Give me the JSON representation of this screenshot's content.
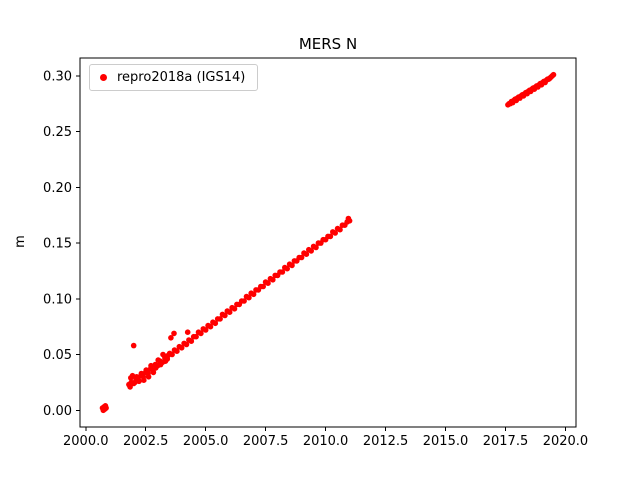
{
  "figure": {
    "title": "MERS N",
    "ylabel": "m"
  },
  "chart_data": {
    "type": "scatter",
    "title": "MERS N",
    "xlabel": "",
    "ylabel": "m",
    "xlim": [
      1999.76,
      2020.44
    ],
    "ylim": [
      -0.015,
      0.316
    ],
    "x_ticks": [
      2000.0,
      2002.5,
      2005.0,
      2007.5,
      2010.0,
      2012.5,
      2015.0,
      2017.5,
      2020.0
    ],
    "x_tick_labels": [
      "2000.0",
      "2002.5",
      "2005.0",
      "2007.5",
      "2010.0",
      "2012.5",
      "2015.0",
      "2017.5",
      "2020.0"
    ],
    "y_ticks": [
      0.0,
      0.05,
      0.1,
      0.15,
      0.2,
      0.25,
      0.3
    ],
    "y_tick_labels": [
      "0.00",
      "0.05",
      "0.10",
      "0.15",
      "0.20",
      "0.25",
      "0.30"
    ],
    "grid": false,
    "legend_position": "upper left",
    "series": [
      {
        "name": "repro2018a (IGS14)",
        "color": "#ff0000",
        "marker": "point",
        "points": [
          [
            2000.7,
            0.002
          ],
          [
            2000.73,
            0.0
          ],
          [
            2000.76,
            0.003
          ],
          [
            2000.79,
            0.001
          ],
          [
            2000.82,
            0.004
          ],
          [
            2000.85,
            0.002
          ],
          [
            2001.8,
            0.023
          ],
          [
            2001.85,
            0.021
          ],
          [
            2001.88,
            0.029
          ],
          [
            2001.9,
            0.025
          ],
          [
            2001.95,
            0.031
          ],
          [
            2002.0,
            0.024
          ],
          [
            2002.0,
            0.058
          ],
          [
            2002.05,
            0.025
          ],
          [
            2002.1,
            0.028
          ],
          [
            2002.12,
            0.03
          ],
          [
            2002.2,
            0.027
          ],
          [
            2002.22,
            0.026
          ],
          [
            2002.3,
            0.031
          ],
          [
            2002.32,
            0.033
          ],
          [
            2002.4,
            0.03
          ],
          [
            2002.42,
            0.027
          ],
          [
            2002.5,
            0.034
          ],
          [
            2002.52,
            0.036
          ],
          [
            2002.6,
            0.033
          ],
          [
            2002.62,
            0.03
          ],
          [
            2002.7,
            0.037
          ],
          [
            2002.72,
            0.04
          ],
          [
            2002.8,
            0.036
          ],
          [
            2002.82,
            0.034
          ],
          [
            2002.9,
            0.041
          ],
          [
            2002.92,
            0.038
          ],
          [
            2003.0,
            0.04
          ],
          [
            2003.02,
            0.045
          ],
          [
            2003.1,
            0.044
          ],
          [
            2003.12,
            0.041
          ],
          [
            2003.2,
            0.043
          ],
          [
            2003.22,
            0.05
          ],
          [
            2003.3,
            0.047
          ],
          [
            2003.32,
            0.044
          ],
          [
            2003.4,
            0.046
          ],
          [
            2003.42,
            0.049
          ],
          [
            2003.5,
            0.051
          ],
          [
            2003.55,
            0.065
          ],
          [
            2003.6,
            0.05
          ],
          [
            2003.68,
            0.069
          ],
          [
            2003.7,
            0.054
          ],
          [
            2003.8,
            0.053
          ],
          [
            2003.9,
            0.057
          ],
          [
            2004.0,
            0.056
          ],
          [
            2004.1,
            0.06
          ],
          [
            2004.2,
            0.059
          ],
          [
            2004.25,
            0.07
          ],
          [
            2004.3,
            0.063
          ],
          [
            2004.4,
            0.062
          ],
          [
            2004.5,
            0.066
          ],
          [
            2004.6,
            0.066
          ],
          [
            2004.7,
            0.07
          ],
          [
            2004.8,
            0.069
          ],
          [
            2004.9,
            0.073
          ],
          [
            2005.0,
            0.072
          ],
          [
            2005.1,
            0.076
          ],
          [
            2005.2,
            0.075
          ],
          [
            2005.3,
            0.079
          ],
          [
            2005.4,
            0.078
          ],
          [
            2005.5,
            0.082
          ],
          [
            2005.6,
            0.082
          ],
          [
            2005.7,
            0.086
          ],
          [
            2005.8,
            0.085
          ],
          [
            2005.9,
            0.089
          ],
          [
            2006.0,
            0.088
          ],
          [
            2006.1,
            0.092
          ],
          [
            2006.2,
            0.091
          ],
          [
            2006.3,
            0.095
          ],
          [
            2006.4,
            0.095
          ],
          [
            2006.5,
            0.098
          ],
          [
            2006.6,
            0.098
          ],
          [
            2006.7,
            0.102
          ],
          [
            2006.8,
            0.101
          ],
          [
            2006.9,
            0.105
          ],
          [
            2007.0,
            0.104
          ],
          [
            2007.1,
            0.108
          ],
          [
            2007.2,
            0.108
          ],
          [
            2007.3,
            0.111
          ],
          [
            2007.4,
            0.111
          ],
          [
            2007.5,
            0.115
          ],
          [
            2007.6,
            0.114
          ],
          [
            2007.7,
            0.118
          ],
          [
            2007.8,
            0.117
          ],
          [
            2007.9,
            0.121
          ],
          [
            2008.0,
            0.121
          ],
          [
            2008.1,
            0.124
          ],
          [
            2008.2,
            0.124
          ],
          [
            2008.3,
            0.128
          ],
          [
            2008.4,
            0.127
          ],
          [
            2008.5,
            0.131
          ],
          [
            2008.6,
            0.13
          ],
          [
            2008.7,
            0.134
          ],
          [
            2008.8,
            0.134
          ],
          [
            2008.9,
            0.137
          ],
          [
            2009.0,
            0.137
          ],
          [
            2009.1,
            0.141
          ],
          [
            2009.2,
            0.14
          ],
          [
            2009.3,
            0.144
          ],
          [
            2009.4,
            0.143
          ],
          [
            2009.5,
            0.147
          ],
          [
            2009.6,
            0.146
          ],
          [
            2009.7,
            0.15
          ],
          [
            2009.8,
            0.15
          ],
          [
            2009.9,
            0.153
          ],
          [
            2010.0,
            0.153
          ],
          [
            2010.1,
            0.156
          ],
          [
            2010.2,
            0.156
          ],
          [
            2010.3,
            0.16
          ],
          [
            2010.4,
            0.159
          ],
          [
            2010.5,
            0.163
          ],
          [
            2010.6,
            0.162
          ],
          [
            2010.7,
            0.166
          ],
          [
            2010.8,
            0.166
          ],
          [
            2010.9,
            0.169
          ],
          [
            2010.95,
            0.172
          ],
          [
            2011.0,
            0.17
          ],
          [
            2017.6,
            0.274
          ],
          [
            2017.65,
            0.275
          ],
          [
            2017.7,
            0.275
          ],
          [
            2017.75,
            0.277
          ],
          [
            2017.8,
            0.276
          ],
          [
            2017.85,
            0.278
          ],
          [
            2017.9,
            0.279
          ],
          [
            2017.95,
            0.278
          ],
          [
            2018.0,
            0.28
          ],
          [
            2018.05,
            0.281
          ],
          [
            2018.1,
            0.28
          ],
          [
            2018.15,
            0.282
          ],
          [
            2018.2,
            0.283
          ],
          [
            2018.25,
            0.282
          ],
          [
            2018.3,
            0.284
          ],
          [
            2018.35,
            0.285
          ],
          [
            2018.4,
            0.284
          ],
          [
            2018.45,
            0.286
          ],
          [
            2018.5,
            0.287
          ],
          [
            2018.55,
            0.286
          ],
          [
            2018.6,
            0.288
          ],
          [
            2018.65,
            0.289
          ],
          [
            2018.7,
            0.288
          ],
          [
            2018.75,
            0.29
          ],
          [
            2018.8,
            0.291
          ],
          [
            2018.85,
            0.29
          ],
          [
            2018.9,
            0.292
          ],
          [
            2018.95,
            0.293
          ],
          [
            2019.0,
            0.292
          ],
          [
            2019.05,
            0.294
          ],
          [
            2019.1,
            0.295
          ],
          [
            2019.15,
            0.294
          ],
          [
            2019.2,
            0.296
          ],
          [
            2019.25,
            0.297
          ],
          [
            2019.3,
            0.297
          ],
          [
            2019.35,
            0.298
          ],
          [
            2019.4,
            0.299
          ],
          [
            2019.45,
            0.3
          ],
          [
            2019.5,
            0.301
          ]
        ]
      }
    ]
  }
}
